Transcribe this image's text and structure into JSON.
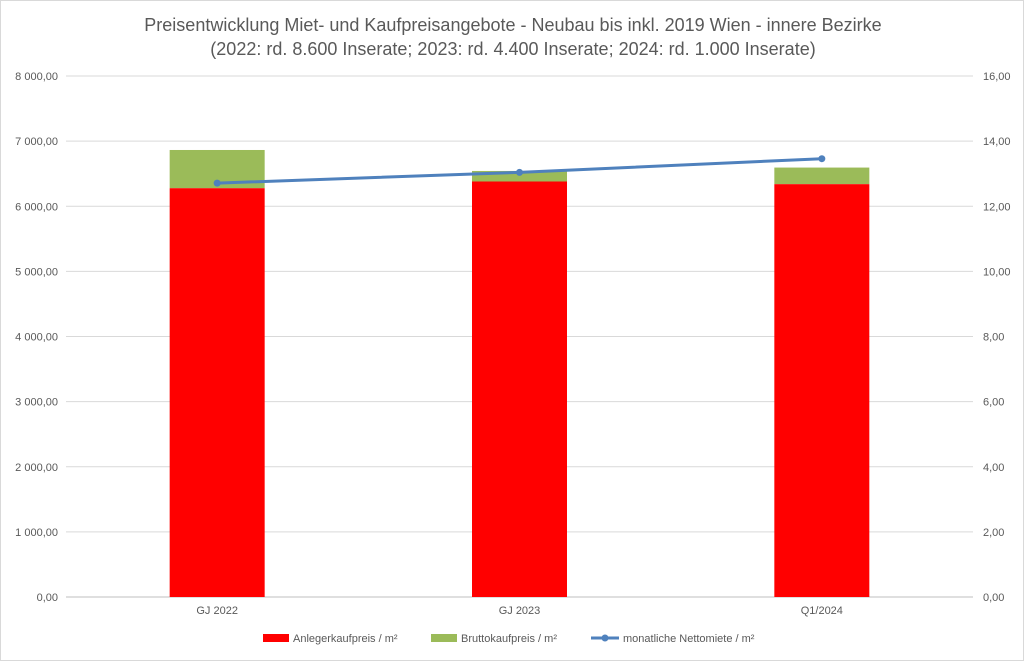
{
  "chart_data": {
    "type": "bar+line",
    "title": [
      "Preisentwicklung Miet- und Kaufpreisangebote - Neubau bis inkl. 2019 Wien - innere Bezirke",
      "(2022: rd. 8.600 Inserate; 2023: rd. 4.400 Inserate; 2024: rd. 1.000 Inserate)"
    ],
    "categories": [
      "GJ 2022",
      "GJ 2023",
      "Q1/2024"
    ],
    "series": [
      {
        "name": "Anlegerkaufpreis / m²",
        "type": "stacked-bar",
        "axis": "left",
        "color": "#ff0000",
        "values": [
          6277,
          6380,
          6339
        ]
      },
      {
        "name": "Bruttokaufpreis / m²",
        "type": "stacked-bar-total",
        "axis": "left",
        "color": "#9bbb59",
        "values": [
          6864,
          6542,
          6594
        ]
      },
      {
        "name": "monatliche Nettomiete / m²",
        "type": "line",
        "axis": "right",
        "color": "#4f81bd",
        "values": [
          12.71,
          13.04,
          13.46
        ]
      }
    ],
    "left_axis": {
      "ylim": [
        0,
        8000
      ],
      "ticks": [
        "0,00",
        "1 000,00",
        "2 000,00",
        "3 000,00",
        "4 000,00",
        "5 000,00",
        "6 000,00",
        "7 000,00",
        "8 000,00"
      ]
    },
    "right_axis": {
      "ylim": [
        0,
        16
      ],
      "ticks": [
        "0,00",
        "2,00",
        "4,00",
        "6,00",
        "8,00",
        "10,00",
        "12,00",
        "14,00",
        "16,00"
      ]
    },
    "grid": true,
    "legend": "bottom"
  }
}
